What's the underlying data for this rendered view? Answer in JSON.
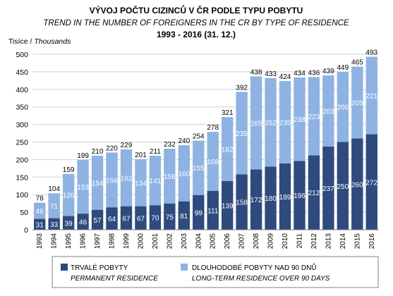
{
  "chart_data": {
    "type": "bar",
    "stacked": true,
    "title": "VÝVOJ POČTU CIZINCŮ V ČR PODLE TYPU POBYTU",
    "subtitle": "TREND IN THE NUMBER OF FOREIGNERS IN THE CR BY TYPE OF RESIDENCE",
    "period": "1993 - 2016 (31. 12.)",
    "ylabel": "Tisíce",
    "ylabel_en": "Thousands",
    "ylabel_sep": " / ",
    "xlabel": "",
    "ylim": [
      0,
      500
    ],
    "yticks": [
      "0",
      "50",
      "100",
      "150",
      "200",
      "250",
      "300",
      "350",
      "400",
      "450",
      "500"
    ],
    "grid": true,
    "legend_position": "bottom",
    "categories": [
      "1993",
      "1994",
      "1995",
      "1996",
      "1997",
      "1998",
      "1999",
      "2000",
      "2001",
      "2002",
      "2003",
      "2004",
      "2005",
      "2006",
      "2007",
      "2008",
      "2009",
      "2010",
      "2011",
      "2012",
      "2013",
      "2014",
      "2015",
      "2016"
    ],
    "series": [
      {
        "name": "TRVALÉ POBYTY",
        "name_en": "PERMANENT RESIDENCE",
        "color": "#2e4a7e",
        "values": [
          31,
          33,
          39,
          46,
          57,
          64,
          67,
          67,
          70,
          75,
          81,
          99,
          111,
          139,
          158,
          172,
          180,
          189,
          196,
          212,
          237,
          250,
          260,
          272
        ]
      },
      {
        "name": "DLOUHODOBÉ POBYTY NAD 90 DNŮ",
        "name_en": "LONG-TERM RESIDENCE OVER 90 DAYS",
        "color": "#8eb3e2",
        "values": [
          46,
          71,
          120,
          153,
          154,
          156,
          162,
          134,
          141,
          156,
          160,
          155,
          168,
          182,
          235,
          265,
          252,
          235,
          238,
          223,
          203,
          200,
          205,
          221
        ]
      }
    ],
    "totals": [
      78,
      104,
      159,
      199,
      210,
      220,
      229,
      201,
      211,
      232,
      240,
      254,
      278,
      321,
      392,
      438,
      433,
      424,
      434,
      436,
      439,
      449,
      465,
      493
    ]
  }
}
